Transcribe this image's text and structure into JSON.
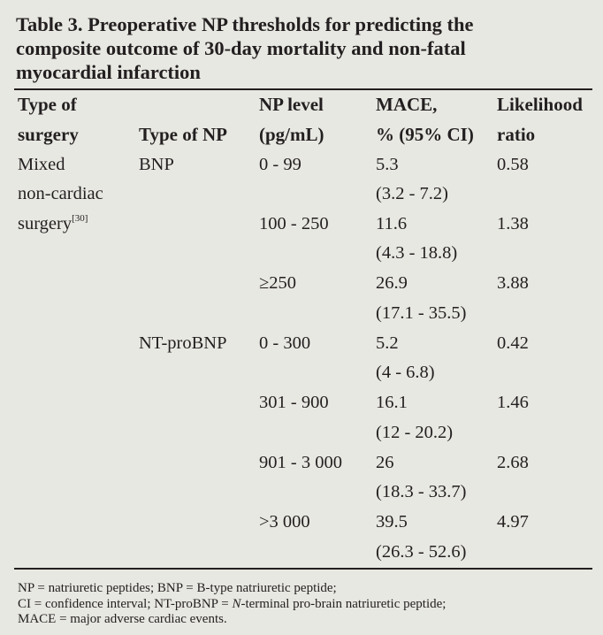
{
  "table": {
    "title": "Table 3. Preoperative NP thresholds for predicting the composite outcome of 30-day mortality and non-fatal myocardial infarction",
    "title_lines": [
      "Table 3. Preoperative NP thresholds for predicting the",
      "composite outcome of 30-day mortality and non-fatal",
      "myocardial infarction"
    ],
    "headers": {
      "surgery": [
        "Type of",
        "surgery"
      ],
      "np_type": [
        "",
        "Type of NP"
      ],
      "np_level": [
        "NP level",
        "(pg/mL)"
      ],
      "mace": [
        "MACE,",
        "% (95% CI)"
      ],
      "lr": [
        "Likelihood",
        "ratio"
      ]
    },
    "surgery": {
      "lines": [
        "Mixed",
        "non-cardiac",
        "surgery"
      ],
      "ref": "[30]"
    },
    "groups": [
      {
        "np_type": "BNP",
        "rows": [
          {
            "level": "0 - 99",
            "mace": "5.3",
            "ci": "(3.2 - 7.2)",
            "lr": "0.58"
          },
          {
            "level": "100 - 250",
            "mace": "11.6",
            "ci": "(4.3 - 18.8)",
            "lr": "1.38"
          },
          {
            "level": "≥250",
            "mace": "26.9",
            "ci": "(17.1 - 35.5)",
            "lr": "3.88"
          }
        ]
      },
      {
        "np_type": "NT-proBNP",
        "rows": [
          {
            "level": "0 - 300",
            "mace": "5.2",
            "ci": "(4 - 6.8)",
            "lr": "0.42"
          },
          {
            "level": "301 - 900",
            "mace": "16.1",
            "ci": "(12 - 20.2)",
            "lr": "1.46"
          },
          {
            "level": "901 - 3 000",
            "mace": "26",
            "ci": "(18.3 - 33.7)",
            "lr": "2.68"
          },
          {
            "level": ">3 000",
            "mace": "39.5",
            "ci": "(26.3 - 52.6)",
            "lr": "4.97"
          }
        ]
      }
    ],
    "footnote": {
      "line1": "NP = natriuretic peptides; BNP = B-type natriuretic peptide;",
      "line2_a": "CI = confidence interval; NT-proBNP = ",
      "line2_italic": "N",
      "line2_b": "-terminal pro-brain natriuretic peptide;",
      "line3": "MACE = major adverse cardiac events."
    }
  }
}
